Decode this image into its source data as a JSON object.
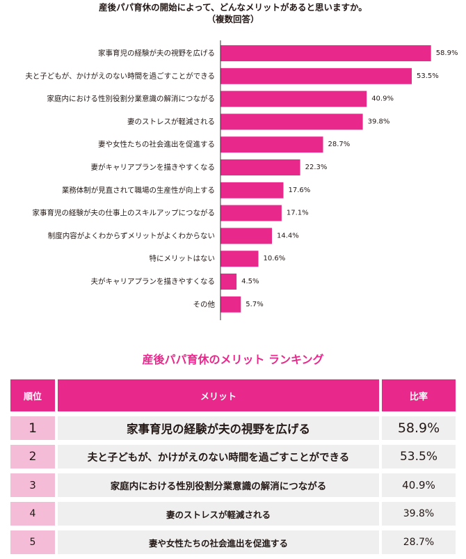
{
  "chart_data": {
    "type": "bar",
    "orientation": "horizontal",
    "title": "産後パパ育休の開始によって、どんなメリットがあると思いますか。",
    "subtitle": "（複数回答）",
    "categories": [
      "家事育児の経験が夫の視野を広げる",
      "夫と子どもが、かけがえのない時間を過ごすことができる",
      "家庭内における性別役割分業意識の解消につながる",
      "妻のストレスが軽減される",
      "妻や女性たちの社会進出を促進する",
      "妻がキャリアプランを描きやすくなる",
      "業務体制が見直されて職場の生産性が向上する",
      "家事育児の経験が夫の仕事上のスキルアップにつながる",
      "制度内容がよくわからずメリットがよくわからない",
      "特にメリットはない",
      "夫がキャリアプランを描きやすくなる",
      "その他"
    ],
    "values": [
      58.9,
      53.5,
      40.9,
      39.8,
      28.7,
      22.3,
      17.6,
      17.1,
      14.4,
      10.6,
      4.5,
      5.7
    ],
    "value_labels": [
      "58.9%",
      "53.5%",
      "40.9%",
      "39.8%",
      "28.7%",
      "22.3%",
      "17.6%",
      "17.1%",
      "14.4%",
      "10.6%",
      "4.5%",
      "5.7%"
    ],
    "xlim": [
      0,
      60
    ],
    "grid": false,
    "bar_color": "#E8298B"
  },
  "ranking": {
    "title": "産後パパ育休のメリット ランキング",
    "headers": {
      "rank": "順位",
      "merit": "メリット",
      "rate": "比率"
    },
    "rows": [
      {
        "rank": "1",
        "merit": "家事育児の経験が夫の視野を広げる",
        "rate": "58.9%"
      },
      {
        "rank": "2",
        "merit": "夫と子どもが、かけがえのない時間を過ごすことができる",
        "rate": "53.5%"
      },
      {
        "rank": "3",
        "merit": "家庭内における性別役割分業意識の解消につながる",
        "rate": "40.9%"
      },
      {
        "rank": "4",
        "merit": "妻のストレスが軽減される",
        "rate": "39.8%"
      },
      {
        "rank": "5",
        "merit": "妻や女性たちの社会進出を促進する",
        "rate": "28.7%"
      }
    ],
    "colors": {
      "header": "#E8298B",
      "rank_cell": "#F5BCD7",
      "cell": "#EFEFEF"
    }
  }
}
